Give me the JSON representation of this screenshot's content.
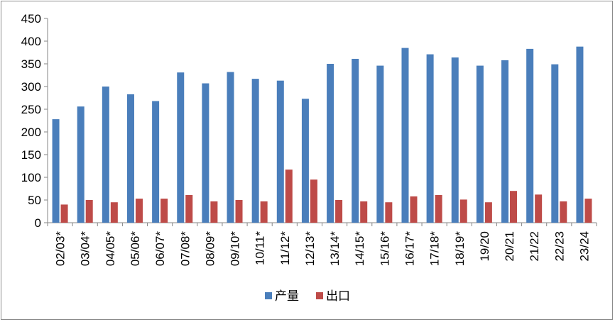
{
  "chart_data": {
    "type": "bar",
    "categories": [
      "02/03*",
      "03/04*",
      "04/05*",
      "05/06*",
      "06/07*",
      "07/08*",
      "08/09*",
      "09/10*",
      "10/11*",
      "11/12*",
      "12/13*",
      "13/14*",
      "14/15*",
      "15/16*",
      "16/17*",
      "17/18*",
      "18/19*",
      "19/20",
      "20/21",
      "21/22",
      "22/23",
      "23/24"
    ],
    "series": [
      {
        "name": "产量",
        "color": "#4a7ebb",
        "values": [
          228,
          256,
          300,
          283,
          268,
          331,
          307,
          332,
          317,
          313,
          273,
          350,
          361,
          346,
          385,
          371,
          364,
          346,
          358,
          383,
          349,
          388
        ]
      },
      {
        "name": "出口",
        "color": "#be4b48",
        "values": [
          40,
          50,
          45,
          53,
          53,
          61,
          47,
          50,
          47,
          117,
          95,
          50,
          47,
          45,
          58,
          61,
          51,
          45,
          70,
          62,
          47,
          53
        ]
      }
    ],
    "ylim": [
      0,
      450
    ],
    "yticks": [
      "0",
      "50",
      "100",
      "150",
      "200",
      "250",
      "300",
      "350",
      "400",
      "450"
    ],
    "grid": false,
    "legend_position": "bottom"
  }
}
